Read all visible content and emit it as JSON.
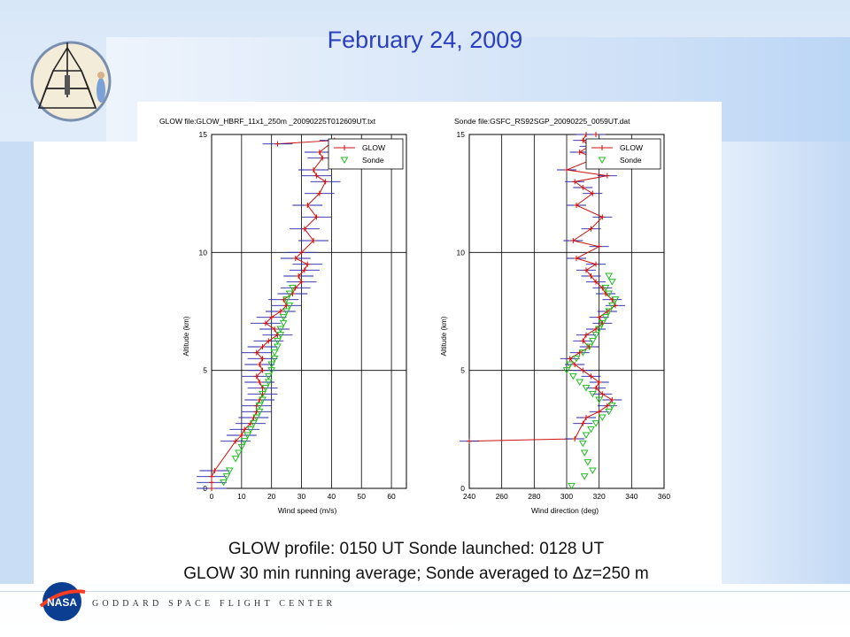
{
  "slide": {
    "title": "February 24, 2009",
    "caption_line1": "GLOW profile: 0150 UT      Sonde launched: 0128 UT",
    "caption_line2_pre": "GLOW 30 min running average; Sonde averaged to ",
    "caption_delta": "Δ",
    "caption_line2_post": "z=250 m",
    "footer_org": "GODDARD SPACE FLIGHT CENTER",
    "nasa_logo_text": "NASA"
  },
  "colors": {
    "glow": "#cc1111",
    "glow_errorbar": "#2222aa",
    "sonde": "#22bb22",
    "title": "#2b3fbf"
  },
  "chart_data": [
    {
      "type": "line",
      "title": "GLOW file:GLOW_HBRF_11x1_250m _20090225T012609UT.txt",
      "xlabel": "Wind speed (m/s)",
      "ylabel": "Altitude (km)",
      "xlim": [
        0,
        65
      ],
      "ylim": [
        0,
        15
      ],
      "xticks": [
        0,
        10,
        20,
        30,
        40,
        50,
        60
      ],
      "yticks": [
        0,
        5,
        10,
        15
      ],
      "grid": true,
      "legend": {
        "position": "top-right",
        "entries": [
          "GLOW",
          "Sonde"
        ]
      },
      "series": [
        {
          "name": "GLOW",
          "marker": "plus",
          "x": [
            0,
            0,
            0,
            1,
            8,
            10,
            11,
            13,
            14,
            15,
            15,
            16,
            17,
            17,
            16,
            15,
            17,
            16,
            17,
            15,
            17,
            19,
            22,
            21,
            18,
            20,
            23,
            25,
            24,
            27,
            28,
            30,
            29,
            31,
            32,
            28,
            30,
            34,
            31,
            35,
            32,
            36,
            38,
            35,
            34,
            37,
            36,
            41,
            22
          ],
          "y": [
            0,
            0.25,
            0.5,
            0.75,
            2,
            2.25,
            2.5,
            2.75,
            3,
            3.25,
            3.5,
            3.75,
            4,
            4.25,
            4.5,
            4.75,
            5,
            5.25,
            5.5,
            5.75,
            6,
            6.25,
            6.5,
            6.75,
            7,
            7.25,
            7.5,
            7.75,
            8,
            8.25,
            8.5,
            8.75,
            9,
            9.25,
            9.5,
            9.75,
            10,
            10.5,
            11,
            11.5,
            12,
            12.5,
            13,
            13.25,
            13.5,
            14,
            14.25,
            14.75,
            14.6
          ]
        },
        {
          "name": "Sonde",
          "marker": "triangle-down",
          "x": [
            4,
            5,
            6,
            8,
            9,
            10,
            11,
            12,
            13,
            14,
            15,
            16,
            16,
            17,
            17,
            18,
            19,
            19,
            20,
            20,
            21,
            21,
            22,
            22,
            23,
            23,
            24,
            24,
            25,
            26,
            25,
            26,
            27
          ],
          "y": [
            0.25,
            0.5,
            0.75,
            1.25,
            1.5,
            1.75,
            2,
            2.25,
            2.5,
            2.75,
            3,
            3.25,
            3.5,
            3.75,
            4,
            4.25,
            4.5,
            4.75,
            5,
            5.25,
            5.5,
            5.75,
            6,
            6.25,
            6.5,
            6.75,
            7,
            7.25,
            7.5,
            7.75,
            8,
            8.25,
            8.5
          ]
        }
      ]
    },
    {
      "type": "line",
      "title": "Sonde file:GSFC_RS92SGP_20090225_0059UT.dat",
      "xlabel": "Wind direction (deg)",
      "ylabel": "Altitude (km)",
      "xlim": [
        240,
        360
      ],
      "ylim": [
        0,
        15
      ],
      "xticks": [
        240,
        260,
        280,
        300,
        320,
        340,
        360
      ],
      "yticks": [
        0,
        5,
        10,
        15
      ],
      "grid": true,
      "legend": {
        "position": "top-right",
        "entries": [
          "GLOW",
          "Sonde"
        ]
      },
      "series": [
        {
          "name": "GLOW",
          "marker": "plus",
          "x": [
            240,
            305,
            310,
            312,
            320,
            325,
            328,
            322,
            318,
            320,
            315,
            310,
            305,
            302,
            308,
            314,
            310,
            312,
            318,
            322,
            320,
            325,
            330,
            328,
            324,
            322,
            318,
            315,
            312,
            318,
            306,
            320,
            304,
            315,
            322,
            306,
            316,
            310,
            305,
            325,
            300,
            318,
            308,
            314,
            310,
            312,
            318
          ],
          "y": [
            2,
            2.1,
            2.75,
            3,
            3.25,
            3.5,
            3.75,
            4,
            4.25,
            4.5,
            4.75,
            5,
            5.25,
            5.5,
            5.75,
            6,
            6.25,
            6.5,
            6.75,
            7,
            7.25,
            7.5,
            7.75,
            8,
            8.25,
            8.5,
            8.75,
            9,
            9.25,
            9.5,
            9.75,
            10.25,
            10.5,
            11,
            11.5,
            12,
            12.5,
            12.75,
            13,
            13.25,
            13.5,
            14,
            14.25,
            14.5,
            14.75,
            15,
            15
          ]
        },
        {
          "name": "Sonde",
          "marker": "triangle-down",
          "x": [
            303,
            311,
            316,
            313,
            311,
            310,
            312,
            315,
            318,
            322,
            326,
            328,
            320,
            316,
            312,
            308,
            304,
            300,
            302,
            306,
            310,
            314,
            316,
            318,
            320,
            322,
            324,
            326,
            328,
            330,
            326,
            324,
            328,
            326
          ],
          "y": [
            0.1,
            0.5,
            0.75,
            1.1,
            1.5,
            1.9,
            2.25,
            2.5,
            2.75,
            3,
            3.25,
            3.5,
            3.75,
            4,
            4.25,
            4.5,
            4.75,
            5,
            5.25,
            5.5,
            5.75,
            6,
            6.25,
            6.5,
            6.75,
            7,
            7.25,
            7.5,
            7.75,
            8,
            8.25,
            8.5,
            8.75,
            9
          ]
        }
      ]
    }
  ]
}
